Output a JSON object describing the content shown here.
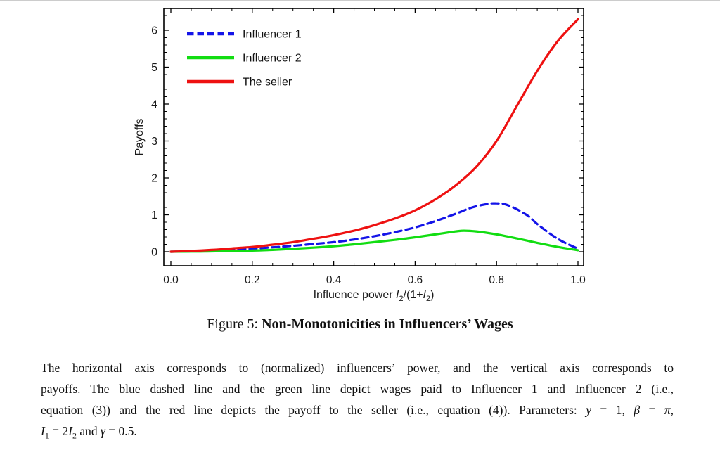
{
  "page": {
    "top_rule_color": "#cccccc"
  },
  "chart_data": {
    "type": "line",
    "title": "",
    "xlabel": "Influence power I2/(1+I2)",
    "xlabel_parts": {
      "prefix": "Influence power ",
      "var": "I",
      "sub": "2",
      "mid": "/(1+",
      "var2": "I",
      "sub2": "2",
      "suffix": ")"
    },
    "ylabel": "Payoffs",
    "xlim": [
      0,
      1.0
    ],
    "ylim": [
      -0.38,
      6.59
    ],
    "grid": false,
    "legend_position": "top-left",
    "x_ticks": {
      "values": [
        0.0,
        0.2,
        0.4,
        0.6,
        0.8,
        1.0
      ],
      "labels": [
        "0.0",
        "0.2",
        "0.4",
        "0.6",
        "0.8",
        "1.0"
      ],
      "minor_step": 0.05
    },
    "y_ticks": {
      "values": [
        0,
        1,
        2,
        3,
        4,
        5,
        6
      ],
      "labels": [
        "0",
        "1",
        "2",
        "3",
        "4",
        "5",
        "6"
      ],
      "minor_step": 0.2
    },
    "legend": [
      {
        "label": "Influencer 1",
        "color": "#1414e8",
        "dashed": true
      },
      {
        "label": "Influencer 2",
        "color": "#12dd12",
        "dashed": false
      },
      {
        "label": "The seller",
        "color": "#ee1111",
        "dashed": false
      }
    ],
    "series": [
      {
        "name": "Influencer 1",
        "color": "#1414e8",
        "dashed": true,
        "x": [
          0,
          0.05,
          0.1,
          0.15,
          0.2,
          0.25,
          0.3,
          0.35,
          0.4,
          0.45,
          0.5,
          0.55,
          0.6,
          0.65,
          0.7,
          0.74,
          0.78,
          0.8,
          0.82,
          0.85,
          0.88,
          0.9,
          0.95,
          1.0
        ],
        "y": [
          0,
          0.01,
          0.02,
          0.05,
          0.08,
          0.12,
          0.16,
          0.21,
          0.26,
          0.33,
          0.42,
          0.53,
          0.66,
          0.83,
          1.03,
          1.2,
          1.3,
          1.31,
          1.29,
          1.15,
          0.95,
          0.75,
          0.35,
          0.08
        ]
      },
      {
        "name": "Influencer 2",
        "color": "#12dd12",
        "dashed": false,
        "x": [
          0,
          0.05,
          0.1,
          0.15,
          0.2,
          0.25,
          0.3,
          0.35,
          0.4,
          0.45,
          0.5,
          0.55,
          0.6,
          0.65,
          0.7,
          0.72,
          0.75,
          0.8,
          0.85,
          0.9,
          0.95,
          1.0
        ],
        "y": [
          0,
          0.003,
          0.01,
          0.02,
          0.03,
          0.05,
          0.08,
          0.11,
          0.15,
          0.2,
          0.26,
          0.32,
          0.39,
          0.47,
          0.55,
          0.57,
          0.55,
          0.47,
          0.36,
          0.24,
          0.13,
          0.04
        ]
      },
      {
        "name": "The seller",
        "color": "#ee1111",
        "dashed": false,
        "x": [
          0,
          0.05,
          0.1,
          0.15,
          0.2,
          0.25,
          0.3,
          0.35,
          0.4,
          0.45,
          0.5,
          0.55,
          0.6,
          0.65,
          0.7,
          0.75,
          0.8,
          0.85,
          0.9,
          0.95,
          1.0
        ],
        "y": [
          0,
          0.02,
          0.05,
          0.09,
          0.13,
          0.19,
          0.26,
          0.35,
          0.45,
          0.57,
          0.72,
          0.9,
          1.12,
          1.42,
          1.8,
          2.3,
          3.0,
          3.95,
          4.9,
          5.7,
          6.3
        ]
      }
    ]
  },
  "caption": {
    "prefix": "Figure 5: ",
    "title": "Non-Monotonicities in Influencers’ Wages"
  },
  "description": {
    "line1": "The horizontal axis corresponds to (normalized) influencers’ power, and the vertical axis corresponds to",
    "line2": "payoffs. The blue dashed line and the green line depict wages paid to Influencer 1 and Influencer 2 (i.e.,",
    "line3": {
      "a": "equation (3)) and the red line depicts the payoff to the seller (i.e., equation (4)). Parameters: ",
      "y": "y",
      "b": " = 1, ",
      "beta": "β",
      "c": " = ",
      "pi": "π",
      "d": ","
    },
    "line4": {
      "I1": "I",
      "s1": "1",
      "a": " = 2",
      "I2": "I",
      "s2": "2",
      "b": " and ",
      "gamma": "γ",
      "c": " = 0.5."
    }
  }
}
